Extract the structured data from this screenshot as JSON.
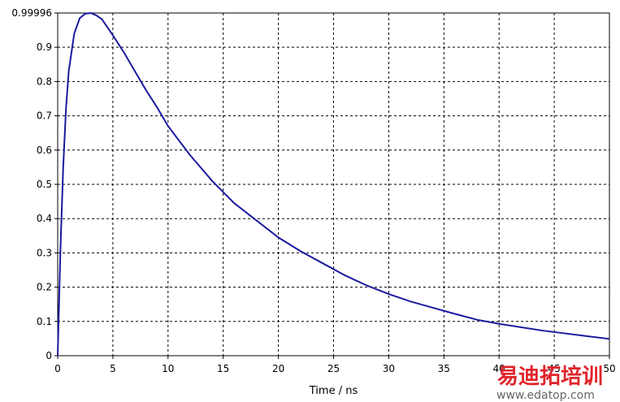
{
  "chart_data": {
    "type": "line",
    "title": "",
    "xlabel": "Time / ns",
    "ylabel": "",
    "xlim": [
      0,
      50
    ],
    "ylim": [
      0,
      0.99996
    ],
    "grid": true,
    "x_ticks": [
      "0",
      "5",
      "10",
      "15",
      "20",
      "25",
      "30",
      "35",
      "40",
      "45",
      "50"
    ],
    "y_ticks": [
      "0",
      "0.1",
      "0.2",
      "0.3",
      "0.4",
      "0.5",
      "0.6",
      "0.7",
      "0.8",
      "0.9",
      "0.99996"
    ],
    "y_tick_values": [
      0,
      0.1,
      0.2,
      0.3,
      0.4,
      0.5,
      0.6,
      0.7,
      0.8,
      0.9,
      0.99996
    ],
    "x_tick_values": [
      0,
      5,
      10,
      15,
      20,
      25,
      30,
      35,
      40,
      45,
      50
    ],
    "series": [
      {
        "color": "#1a1aa0",
        "x": [
          0,
          0.25,
          0.5,
          0.75,
          1,
          1.5,
          2,
          2.5,
          3,
          3.5,
          4,
          5,
          6,
          7,
          8,
          9,
          10,
          12,
          14,
          16,
          18,
          20,
          22,
          24,
          26,
          28,
          30,
          32,
          34,
          36,
          38,
          40,
          42,
          44,
          46,
          48,
          50
        ],
        "y": [
          0,
          0.31,
          0.55,
          0.72,
          0.83,
          0.94,
          0.985,
          0.998,
          0.99996,
          0.993,
          0.982,
          0.935,
          0.885,
          0.83,
          0.775,
          0.725,
          0.67,
          0.585,
          0.51,
          0.445,
          0.395,
          0.345,
          0.305,
          0.27,
          0.235,
          0.205,
          0.18,
          0.158,
          0.14,
          0.122,
          0.105,
          0.093,
          0.083,
          0.073,
          0.065,
          0.057,
          0.049
        ]
      }
    ]
  },
  "watermark": {
    "title": "易迪拓培训",
    "url": "www.edatop.com"
  }
}
